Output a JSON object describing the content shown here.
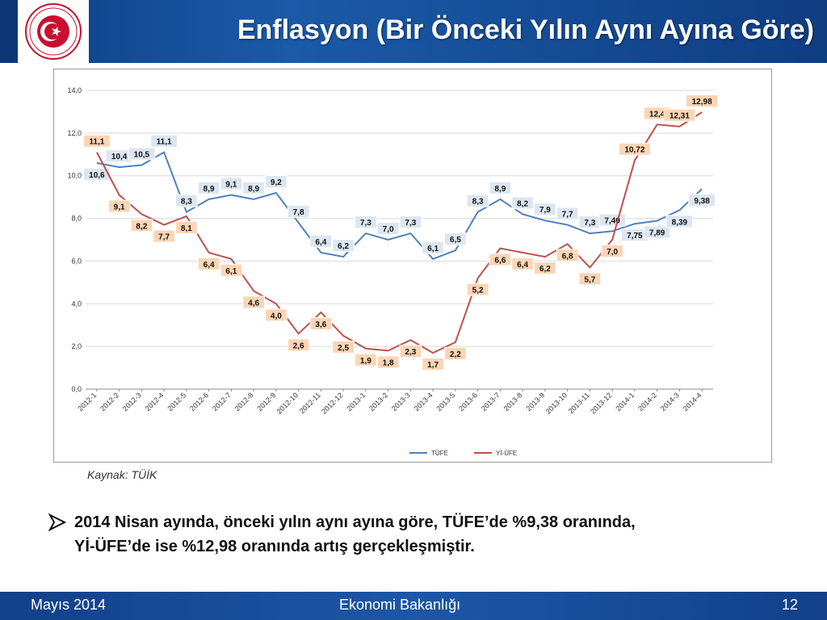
{
  "header": {
    "title": "Enflasyon (Bir Önceki Yılın Aynı Ayına Göre)",
    "logo_text": "TÜRKİYE CUMHURİYETİ EKONOMİ BAKANLIĞI"
  },
  "colors": {
    "tufe": "#4f81bd",
    "yiufe": "#c0504d",
    "header": "#12408a"
  },
  "chart_data": {
    "type": "line",
    "categories": [
      "2012-1",
      "2012-2",
      "2012-3",
      "2012-4",
      "2012-5",
      "2012-6",
      "2012-7",
      "2012-8",
      "2012-9",
      "2012-10",
      "2012-11",
      "2012-12",
      "2013-1",
      "2013-2",
      "2013-3",
      "2013-4",
      "2013-5",
      "2013-6",
      "2013-7",
      "2013-8",
      "2013-9",
      "2013-10",
      "2013-11",
      "2013-12",
      "2014-1",
      "2014-2",
      "2014-3",
      "2014-4"
    ],
    "ylim": [
      0,
      14
    ],
    "yticks": [
      "0,0",
      "2,0",
      "4,0",
      "6,0",
      "8,0",
      "10,0",
      "12,0",
      "14,0"
    ],
    "grid": true,
    "legend_position": "bottom",
    "series": [
      {
        "name": "TÜFE",
        "color": "#4f81bd",
        "values": [
          10.6,
          10.4,
          10.5,
          11.1,
          8.3,
          8.9,
          9.1,
          8.9,
          9.2,
          7.8,
          6.4,
          6.2,
          7.3,
          7.0,
          7.3,
          6.1,
          6.5,
          8.3,
          8.9,
          8.2,
          7.9,
          7.7,
          7.3,
          7.4,
          7.75,
          7.89,
          8.39,
          9.38
        ],
        "labels": [
          "10,6",
          "10,4",
          "10,5",
          "11,1",
          "8,3",
          "8,9",
          "9,1",
          "8,9",
          "9,2",
          "7,8",
          "6,4",
          "6,2",
          "7,3",
          "7,0",
          "7,3",
          "6,1",
          "6,5",
          "8,3",
          "8,9",
          "8,2",
          "7,9",
          "7,7",
          "7,3",
          "7,40",
          "7,75",
          "7,89",
          "8,39",
          "9,38"
        ]
      },
      {
        "name": "Yİ-ÜFE",
        "color": "#c0504d",
        "values": [
          11.1,
          9.1,
          8.2,
          7.7,
          8.1,
          6.4,
          6.1,
          4.6,
          4.0,
          2.6,
          3.6,
          2.5,
          1.9,
          1.8,
          2.3,
          1.7,
          2.2,
          5.2,
          6.6,
          6.4,
          6.2,
          6.8,
          5.7,
          7.0,
          10.72,
          12.4,
          12.31,
          12.98
        ],
        "labels": [
          "11,1",
          "9,1",
          "8,2",
          "7,7",
          "8,1",
          "6,4",
          "6,1",
          "4,6",
          "4,0",
          "2,6",
          "3,6",
          "2,5",
          "1,9",
          "1,8",
          "2,3",
          "1,7",
          "2,2",
          "5,2",
          "6,6",
          "6,4",
          "6,2",
          "6,8",
          "5,7",
          "7,0",
          "10,72",
          "12,4",
          "12,31",
          "12,98"
        ]
      }
    ]
  },
  "source": "Kaynak: TÜİK",
  "note": {
    "line1": "2014 Nisan ayında, önceki yılın aynı ayına göre, TÜFE’de %9,38 oranında,",
    "line2": "Yİ-ÜFE’de ise %12,98 oranında artış gerçekleşmiştir."
  },
  "footer": {
    "date": "Mayıs 2014",
    "center": "Ekonomi Bakanlığı",
    "page": "12"
  }
}
